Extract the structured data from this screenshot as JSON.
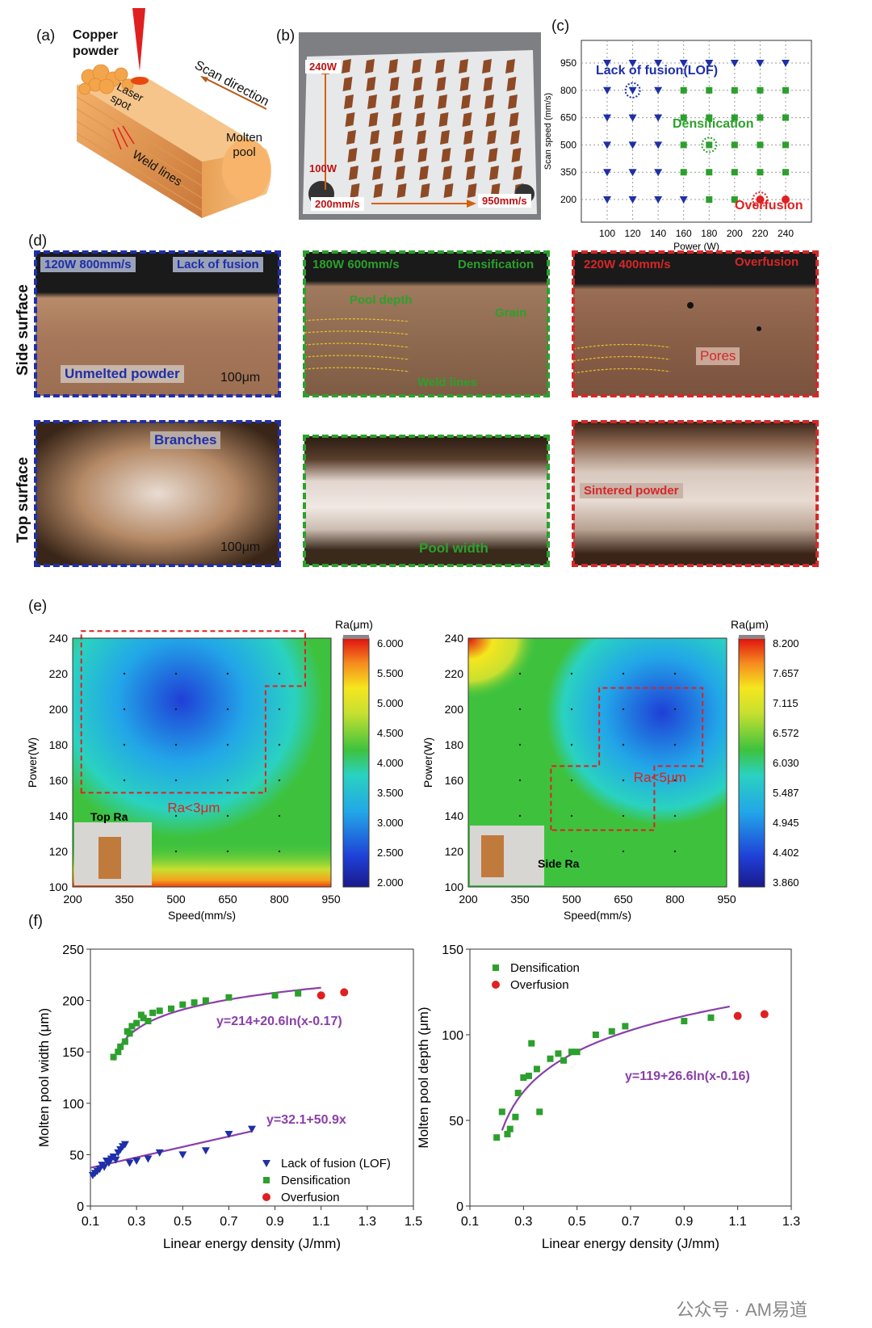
{
  "panels": {
    "a": {
      "label": "(a)",
      "copper_powder": "Copper\npowder",
      "laser_spot": "Laser\nspot",
      "scan_direction": "Scan direction",
      "molten_pool": "Molten\npool",
      "weld_lines": "Weld lines"
    },
    "b": {
      "label": "(b)",
      "p_high": "240W",
      "p_low": "100W",
      "s_low": "200mm/s",
      "s_high": "950mm/s"
    },
    "c": {
      "label": "(c)",
      "xlabel": "Power (W)",
      "ylabel": "Scan speed (mm/s)",
      "annot_lof": "Lack of fusion(LOF)",
      "annot_dens": "Densification",
      "annot_over": "Overfusion"
    },
    "d": {
      "label": "(d)",
      "side_surface": "Side surface",
      "top_surface": "Top surface",
      "side1_params": "120W 800mm/s",
      "side1_state": "Lack of fusion",
      "side1_note": "Unmelted powder",
      "side1_scale": "100μm",
      "side2_params": "180W 600mm/s",
      "side2_state": "Densification",
      "side2_pool": "Pool depth",
      "side2_grain": "Grain",
      "side2_weld": "Weld lines",
      "side3_params": "220W 400mm/s",
      "side3_state": "Overfusion",
      "side3_pores": "Pores",
      "top1_note": "Branches",
      "top1_scale": "100μm",
      "top2_note": "Pool width",
      "top3_note": "Sintered powder"
    },
    "e": {
      "label": "(e)",
      "left": {
        "xlabel": "Speed(mm/s)",
        "ylabel": "Power(W)",
        "cbar_title": "Ra(μm)",
        "region": "Ra<3μm",
        "inset": "Top Ra",
        "cbar_ticks": [
          "6.000",
          "5.500",
          "5.000",
          "4.500",
          "4.000",
          "3.500",
          "3.000",
          "2.500",
          "2.000"
        ]
      },
      "right": {
        "xlabel": "Speed(mm/s)",
        "ylabel": "Power(W)",
        "cbar_title": "Ra(μm)",
        "region": "Ra<5μm",
        "inset": "Side Ra",
        "cbar_ticks": [
          "8.200",
          "7.657",
          "7.115",
          "6.572",
          "6.030",
          "5.487",
          "4.945",
          "4.402",
          "3.860"
        ]
      }
    },
    "f": {
      "label": "(f)",
      "left": {
        "xlabel": "Linear energy density (J/mm)",
        "ylabel": "Molten pool width (μm)",
        "eq_upper": "y=214+20.6ln(x-0.17)",
        "eq_lower": "y=32.1+50.9x",
        "legend": [
          "Lack of fusion (LOF)",
          "Densification",
          "Overfusion"
        ]
      },
      "right": {
        "xlabel": "Linear energy density (J/mm)",
        "ylabel": "Molten pool depth (μm)",
        "eq": "y=119+26.6ln(x-0.16)",
        "legend": [
          "Densification",
          "Overfusion"
        ]
      }
    }
  },
  "watermark": "公众号 · AM易道",
  "colors": {
    "lof": "#1f2fa8",
    "densification": "#2ca02c",
    "overfusion": "#e02020",
    "fit": "#8a3fa8"
  },
  "chart_data": [
    {
      "id": "c",
      "type": "scatter",
      "xlabel": "Power (W)",
      "ylabel": "Scan speed (mm/s)",
      "x_ticks": [
        100,
        120,
        140,
        160,
        180,
        200,
        220,
        240
      ],
      "y_ticks": [
        200,
        350,
        500,
        650,
        800,
        950
      ],
      "grid": true,
      "series": [
        {
          "name": "Lack of fusion(LOF)",
          "marker": "triangle-down",
          "points": [
            [
              100,
              950
            ],
            [
              120,
              950
            ],
            [
              140,
              950
            ],
            [
              160,
              950
            ],
            [
              180,
              950
            ],
            [
              200,
              950
            ],
            [
              220,
              950
            ],
            [
              240,
              950
            ],
            [
              100,
              800
            ],
            [
              120,
              800
            ],
            [
              140,
              800
            ],
            [
              100,
              650
            ],
            [
              120,
              650
            ],
            [
              140,
              650
            ],
            [
              100,
              500
            ],
            [
              120,
              500
            ],
            [
              140,
              500
            ],
            [
              100,
              350
            ],
            [
              120,
              350
            ],
            [
              140,
              350
            ],
            [
              100,
              200
            ],
            [
              120,
              200
            ],
            [
              140,
              200
            ],
            [
              160,
              200
            ]
          ]
        },
        {
          "name": "Densification",
          "marker": "square",
          "points": [
            [
              160,
              800
            ],
            [
              180,
              800
            ],
            [
              200,
              800
            ],
            [
              220,
              800
            ],
            [
              240,
              800
            ],
            [
              160,
              650
            ],
            [
              180,
              650
            ],
            [
              200,
              650
            ],
            [
              220,
              650
            ],
            [
              240,
              650
            ],
            [
              160,
              500
            ],
            [
              180,
              500
            ],
            [
              200,
              500
            ],
            [
              220,
              500
            ],
            [
              240,
              500
            ],
            [
              160,
              350
            ],
            [
              180,
              350
            ],
            [
              200,
              350
            ],
            [
              220,
              350
            ],
            [
              240,
              350
            ],
            [
              180,
              200
            ],
            [
              200,
              200
            ]
          ]
        },
        {
          "name": "Overfusion",
          "marker": "circle",
          "points": [
            [
              220,
              200
            ],
            [
              240,
              200
            ]
          ]
        }
      ]
    },
    {
      "id": "e-left",
      "type": "heatmap",
      "xlabel": "Speed(mm/s)",
      "ylabel": "Power(W)",
      "x_ticks": [
        200,
        350,
        500,
        650,
        800,
        950
      ],
      "y_ticks": [
        100,
        120,
        140,
        160,
        180,
        200,
        220,
        240
      ],
      "zlabel": "Ra(μm)",
      "zlim": [
        2.0,
        6.0
      ]
    },
    {
      "id": "e-right",
      "type": "heatmap",
      "xlabel": "Speed(mm/s)",
      "ylabel": "Power(W)",
      "x_ticks": [
        200,
        350,
        500,
        650,
        800,
        950
      ],
      "y_ticks": [
        100,
        120,
        140,
        160,
        180,
        200,
        220,
        240
      ],
      "zlabel": "Ra(μm)",
      "zlim": [
        3.86,
        8.2
      ]
    },
    {
      "id": "f-left",
      "type": "scatter",
      "xlabel": "Linear energy density (J/mm)",
      "ylabel": "Molten pool width (μm)",
      "xlim": [
        0.1,
        1.5
      ],
      "ylim": [
        0,
        250
      ],
      "x_ticks": [
        0.1,
        0.3,
        0.5,
        0.7,
        0.9,
        1.1,
        1.3,
        1.5
      ],
      "y_ticks": [
        0,
        50,
        100,
        150,
        200,
        250
      ],
      "series": [
        {
          "name": "Lack of fusion (LOF)",
          "marker": "triangle-down",
          "points": [
            [
              0.11,
              30
            ],
            [
              0.12,
              32
            ],
            [
              0.13,
              34
            ],
            [
              0.14,
              36
            ],
            [
              0.15,
              40
            ],
            [
              0.16,
              38
            ],
            [
              0.17,
              44
            ],
            [
              0.18,
              42
            ],
            [
              0.19,
              46
            ],
            [
              0.2,
              48
            ],
            [
              0.21,
              45
            ],
            [
              0.22,
              52
            ],
            [
              0.23,
              55
            ],
            [
              0.24,
              58
            ],
            [
              0.25,
              60
            ],
            [
              0.27,
              42
            ],
            [
              0.3,
              44
            ],
            [
              0.35,
              46
            ],
            [
              0.4,
              52
            ],
            [
              0.5,
              50
            ],
            [
              0.6,
              54
            ],
            [
              0.7,
              70
            ],
            [
              0.8,
              75
            ]
          ]
        },
        {
          "name": "Densification",
          "marker": "square",
          "points": [
            [
              0.2,
              145
            ],
            [
              0.22,
              150
            ],
            [
              0.23,
              155
            ],
            [
              0.25,
              160
            ],
            [
              0.26,
              170
            ],
            [
              0.27,
              168
            ],
            [
              0.28,
              175
            ],
            [
              0.3,
              178
            ],
            [
              0.32,
              186
            ],
            [
              0.33,
              183
            ],
            [
              0.35,
              180
            ],
            [
              0.37,
              188
            ],
            [
              0.4,
              190
            ],
            [
              0.45,
              192
            ],
            [
              0.5,
              196
            ],
            [
              0.55,
              198
            ],
            [
              0.6,
              200
            ],
            [
              0.7,
              203
            ],
            [
              0.9,
              205
            ],
            [
              1.0,
              207
            ]
          ]
        },
        {
          "name": "Overfusion",
          "marker": "circle",
          "points": [
            [
              1.1,
              205
            ],
            [
              1.2,
              208
            ]
          ]
        }
      ],
      "fits": [
        {
          "equation": "y=214+20.6ln(x-0.17)",
          "a": 214,
          "b": 20.6,
          "c": 0.17,
          "kind": "log",
          "x_range": [
            0.2,
            1.1
          ]
        },
        {
          "equation": "y=32.1+50.9x",
          "a": 32.1,
          "b": 50.9,
          "kind": "linear",
          "x_range": [
            0.1,
            0.8
          ]
        }
      ]
    },
    {
      "id": "f-right",
      "type": "scatter",
      "xlabel": "Linear energy density (J/mm)",
      "ylabel": "Molten pool depth (μm)",
      "xlim": [
        0.1,
        1.3
      ],
      "ylim": [
        0,
        150
      ],
      "x_ticks": [
        0.1,
        0.3,
        0.5,
        0.7,
        0.9,
        1.1,
        1.3
      ],
      "y_ticks": [
        0,
        50,
        100,
        150
      ],
      "series": [
        {
          "name": "Densification",
          "marker": "square",
          "points": [
            [
              0.2,
              40
            ],
            [
              0.22,
              55
            ],
            [
              0.24,
              42
            ],
            [
              0.25,
              45
            ],
            [
              0.27,
              52
            ],
            [
              0.28,
              66
            ],
            [
              0.3,
              75
            ],
            [
              0.32,
              76
            ],
            [
              0.33,
              95
            ],
            [
              0.35,
              80
            ],
            [
              0.36,
              55
            ],
            [
              0.4,
              86
            ],
            [
              0.43,
              89
            ],
            [
              0.45,
              85
            ],
            [
              0.48,
              90
            ],
            [
              0.5,
              90
            ],
            [
              0.57,
              100
            ],
            [
              0.63,
              102
            ],
            [
              0.68,
              105
            ],
            [
              0.9,
              108
            ],
            [
              1.0,
              110
            ]
          ]
        },
        {
          "name": "Overfusion",
          "marker": "circle",
          "points": [
            [
              1.1,
              111
            ],
            [
              1.2,
              112
            ]
          ]
        }
      ],
      "fits": [
        {
          "equation": "y=119+26.6ln(x-0.16)",
          "a": 119,
          "b": 26.6,
          "c": 0.16,
          "kind": "log",
          "x_range": [
            0.22,
            1.07
          ]
        }
      ]
    }
  ]
}
